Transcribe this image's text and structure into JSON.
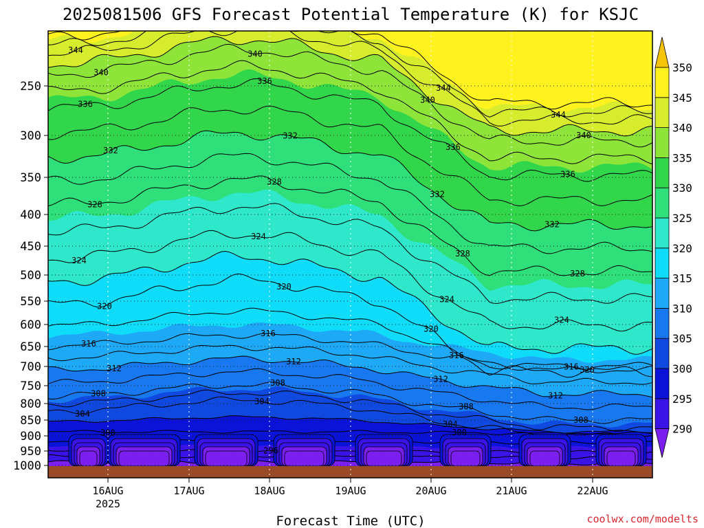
{
  "chart_data": {
    "type": "heatmap",
    "title": "2025081506 GFS Forecast Potential Temperature (K) for KSJC",
    "xlabel": "Forecast Time (UTC)",
    "credit": "coolwx.com/modelts",
    "x_ticks": [
      "16AUG",
      "17AUG",
      "18AUG",
      "19AUG",
      "20AUG",
      "21AUG",
      "22AUG"
    ],
    "x_year": "2025",
    "y_ticks": [
      250,
      300,
      350,
      400,
      450,
      500,
      550,
      600,
      650,
      700,
      750,
      800,
      850,
      900,
      950,
      1000
    ],
    "y_scale": "log-pressure",
    "colorbar": {
      "ticks": [
        290,
        295,
        300,
        305,
        310,
        315,
        320,
        325,
        330,
        335,
        340,
        345,
        350
      ],
      "colors": [
        "#7a1ff0",
        "#3a13e6",
        "#0b13d8",
        "#0f49e0",
        "#1778f0",
        "#1ea9f6",
        "#0fdcf8",
        "#2fe8cc",
        "#2fe07a",
        "#32d64a",
        "#8fe43a",
        "#d8ec2e",
        "#fff21f",
        "#f5c30a"
      ]
    },
    "contour_labels": [
      {
        "text": "344"
      },
      {
        "text": "340"
      },
      {
        "text": "336"
      },
      {
        "text": "332"
      },
      {
        "text": "328"
      },
      {
        "text": "324"
      },
      {
        "text": "320"
      },
      {
        "text": "316"
      },
      {
        "text": "312"
      },
      {
        "text": "308"
      },
      {
        "text": "304"
      },
      {
        "text": "300"
      },
      {
        "text": "296"
      },
      {
        "text": "340"
      },
      {
        "text": "344"
      },
      {
        "text": "336"
      },
      {
        "text": "332"
      },
      {
        "text": "328"
      },
      {
        "text": "324"
      },
      {
        "text": "320"
      },
      {
        "text": "316"
      },
      {
        "text": "312"
      },
      {
        "text": "308"
      },
      {
        "text": "304"
      },
      {
        "text": "300"
      },
      {
        "text": "344"
      },
      {
        "text": "340"
      },
      {
        "text": "336"
      },
      {
        "text": "332"
      },
      {
        "text": "328"
      },
      {
        "text": "324"
      },
      {
        "text": "320"
      },
      {
        "text": "316"
      },
      {
        "text": "312"
      },
      {
        "text": "308"
      },
      {
        "text": "304"
      },
      {
        "text": "344"
      },
      {
        "text": "340"
      },
      {
        "text": "336"
      },
      {
        "text": "332"
      },
      {
        "text": "328"
      },
      {
        "text": "324"
      },
      {
        "text": "320"
      },
      {
        "text": "316"
      },
      {
        "text": "312"
      },
      {
        "text": "308"
      }
    ],
    "grid": true,
    "legend": "right colorbar"
  }
}
